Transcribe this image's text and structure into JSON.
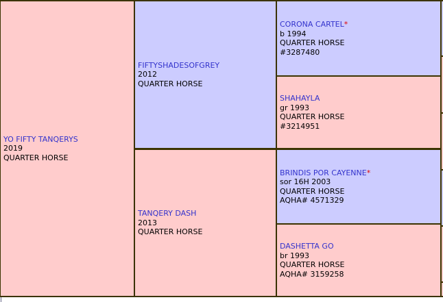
{
  "pedigree": {
    "subject": {
      "name": "YO FIFTY TANQERYS",
      "details": [
        "2019",
        "QUARTER HORSE"
      ]
    },
    "sire": {
      "name": "FIFTYSHADESOFGREY",
      "details": [
        "2012",
        "QUARTER HORSE"
      ]
    },
    "dam": {
      "name": "TANQERY DASH",
      "details": [
        "2013",
        "QUARTER HORSE"
      ]
    },
    "sire_sire": {
      "name": "CORONA CARTEL",
      "star": "*",
      "details": [
        "b 1994",
        "QUARTER HORSE",
        "#3287480"
      ]
    },
    "sire_dam": {
      "name": "SHAHAYLA",
      "details": [
        "gr 1993",
        "QUARTER HORSE",
        "#3214951"
      ]
    },
    "dam_sire": {
      "name": "BRINDIS POR CAYENNE",
      "star": "*",
      "details": [
        "sor 16H 2003",
        "QUARTER HORSE",
        "AQHA# 4571329"
      ]
    },
    "dam_dam": {
      "name": "DASHETTA GO",
      "details": [
        "br 1993",
        "QUARTER HORSE",
        "AQHA# 3159258"
      ]
    }
  },
  "colors": {
    "sire_line_bg": "#ccccff",
    "dam_line_bg": "#ffcccc",
    "grid_border": "#3b3300",
    "link_blue": "#3333cc",
    "star_red": "#e00000"
  }
}
